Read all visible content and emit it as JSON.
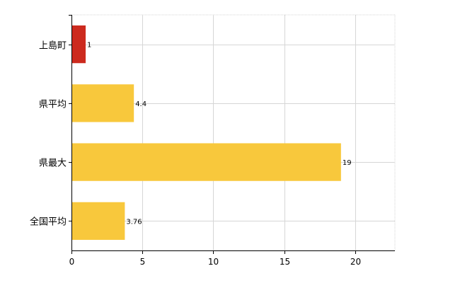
{
  "chart_data": {
    "type": "bar",
    "orientation": "horizontal",
    "categories": [
      "上島町",
      "県平均",
      "県最大",
      "全国平均"
    ],
    "values": [
      1,
      4.4,
      19,
      3.76
    ],
    "value_labels": [
      "1",
      "4.4",
      "19",
      "3.76"
    ],
    "bar_colors": [
      "#cc2a1e",
      "#f8c83c",
      "#f8c83c",
      "#f8c83c"
    ],
    "xlim": [
      0,
      22.8
    ],
    "xticks": [
      0,
      5,
      10,
      15,
      20
    ],
    "xtick_labels": [
      "0",
      "5",
      "10",
      "15",
      "20"
    ],
    "grid": true,
    "legend": "none"
  },
  "colors": {
    "grid": "#d6d6d6",
    "axis": "#000000"
  }
}
